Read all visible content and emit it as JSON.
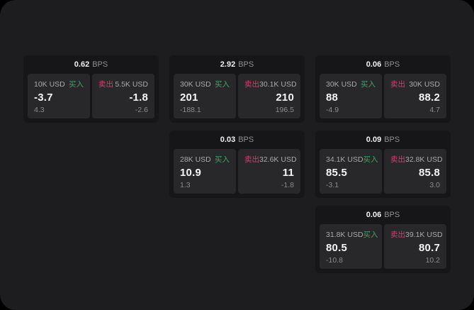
{
  "labels": {
    "bps_unit": "BPS",
    "buy": "买入",
    "sell": "卖出"
  },
  "colors": {
    "background": "#1d1d1f",
    "card": "#161618",
    "panel": "#28282b",
    "buy": "#3ea463",
    "sell": "#c4476a"
  },
  "cards": [
    {
      "bps": "0.62",
      "buy": {
        "amount": "10K USD",
        "price": "-3.7",
        "change": "4.3"
      },
      "sell": {
        "amount": "5.5K USD",
        "price": "-1.8",
        "change": "-2.6"
      }
    },
    {
      "bps": "2.92",
      "buy": {
        "amount": "30K USD",
        "price": "201",
        "change": "-188.1"
      },
      "sell": {
        "amount": "30.1K USD",
        "price": "210",
        "change": "196.5"
      }
    },
    {
      "bps": "0.06",
      "buy": {
        "amount": "30K USD",
        "price": "88",
        "change": "-4.9"
      },
      "sell": {
        "amount": "30K USD",
        "price": "88.2",
        "change": "4.7"
      }
    },
    {
      "bps": "0.03",
      "buy": {
        "amount": "28K USD",
        "price": "10.9",
        "change": "1.3"
      },
      "sell": {
        "amount": "32.6K USD",
        "price": "11",
        "change": "-1.8"
      }
    },
    {
      "bps": "0.09",
      "buy": {
        "amount": "34.1K USD",
        "price": "85.5",
        "change": "-3.1"
      },
      "sell": {
        "amount": "32.8K USD",
        "price": "85.8",
        "change": "3.0"
      }
    },
    {
      "bps": "0.06",
      "buy": {
        "amount": "31.8K USD",
        "price": "80.5",
        "change": "-10.8"
      },
      "sell": {
        "amount": "39.1K USD",
        "price": "80.7",
        "change": "10.2"
      }
    }
  ]
}
